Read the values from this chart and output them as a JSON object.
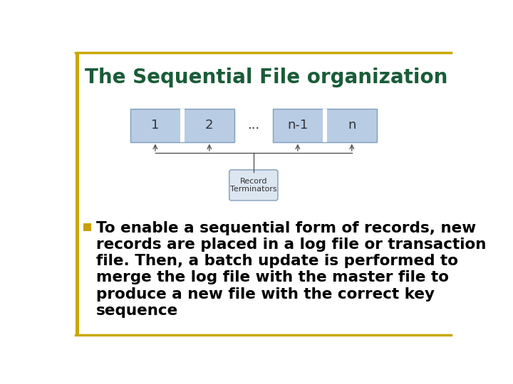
{
  "title": "The Sequential File organization",
  "title_color": "#1a5c38",
  "title_fontsize": 20,
  "border_color": "#c8a800",
  "bg_color": "#ffffff",
  "block_color": "#b8cce4",
  "block_border_color": "#7f9db9",
  "block_labels": [
    "1",
    "2",
    "...",
    "n-1",
    "n"
  ],
  "separator_color": "#ffffff",
  "arrow_color": "#555555",
  "box_label": "Record\nTerminators",
  "box_color": "#dce6f1",
  "box_border_color": "#7f9db9",
  "bullet_color": "#c8a000",
  "bullet_text_lines": [
    "To enable a sequential form of records, new",
    "records are placed in a log file or transaction",
    "file. Then, a batch update is performed to",
    "merge the log file with the master file to",
    "produce a new file with the correct key",
    "sequence"
  ],
  "text_color": "#000000",
  "text_fontsize": 15.5,
  "figsize": [
    7.2,
    5.4
  ],
  "dpi": 100
}
